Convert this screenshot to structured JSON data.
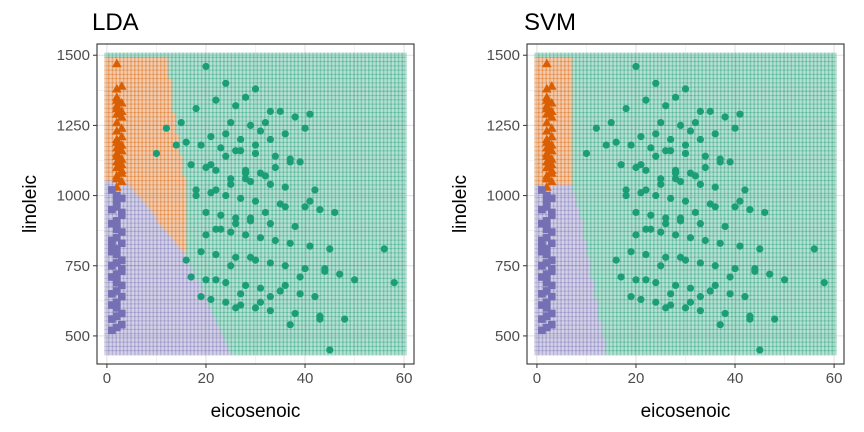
{
  "chart_data": [
    {
      "type": "scatter",
      "title": "LDA",
      "xlabel": "eicosenoic",
      "ylabel": "linoleic",
      "xlim": [
        -2,
        62
      ],
      "ylim": [
        400,
        1540
      ],
      "x_ticks": [
        0,
        20,
        40,
        60
      ],
      "y_ticks": [
        500,
        750,
        1000,
        1250,
        1500
      ],
      "grid": true,
      "legend": "none",
      "background_regions": {
        "grid_x_range": [
          0,
          60
        ],
        "grid_y_range": [
          440,
          1500
        ],
        "regions": [
          {
            "class": "orange",
            "color": "#D95F02",
            "polygon": [
              [
                0,
                1500
              ],
              [
                12.5,
                1500
              ],
              [
                13,
                1340
              ],
              [
                16,
                1050
              ],
              [
                16,
                790
              ],
              [
                3.5,
                1060
              ],
              [
                0,
                1060
              ]
            ]
          },
          {
            "class": "purple",
            "color": "#7570B3",
            "polygon": [
              [
                0,
                1060
              ],
              [
                3.5,
                1060
              ],
              [
                16,
                790
              ],
              [
                25,
                440
              ],
              [
                0,
                440
              ]
            ]
          },
          {
            "class": "green",
            "color": "#1B9E77",
            "polygon": [
              [
                12.5,
                1500
              ],
              [
                60,
                1500
              ],
              [
                60,
                440
              ],
              [
                25,
                440
              ],
              [
                16,
                790
              ],
              [
                16,
                1050
              ],
              [
                13,
                1340
              ]
            ]
          }
        ]
      },
      "series": [
        {
          "color": "#D95F02",
          "marker": "triangle",
          "x": [
            2,
            2,
            3,
            2,
            2,
            3,
            2,
            3,
            2,
            2,
            3,
            2,
            3,
            2,
            2,
            3,
            2,
            3,
            2,
            3,
            2,
            2,
            3,
            2,
            3,
            2,
            2,
            3,
            2,
            3,
            3,
            2
          ],
          "y": [
            1470,
            1380,
            1390,
            1350,
            1320,
            1330,
            1290,
            1300,
            1260,
            1230,
            1240,
            1190,
            1180,
            1150,
            1140,
            1130,
            1120,
            1110,
            1100,
            1080,
            1070,
            1060,
            1050,
            1200,
            1280,
            1340,
            1030,
            1090,
            1170,
            1210,
            1160,
            1310
          ]
        },
        {
          "color": "#7570B3",
          "marker": "square",
          "x": [
            1,
            2,
            3,
            2,
            1,
            3,
            2,
            1,
            2,
            3,
            2,
            1,
            3,
            2,
            1,
            2,
            3,
            2,
            1,
            3,
            2,
            1,
            2,
            3,
            2,
            1,
            3,
            2,
            1,
            2,
            3,
            2,
            1,
            3,
            2,
            1,
            2,
            3,
            2,
            1,
            3,
            2
          ],
          "y": [
            1020,
            1000,
            990,
            960,
            950,
            930,
            910,
            900,
            880,
            870,
            850,
            840,
            830,
            810,
            800,
            790,
            770,
            760,
            750,
            730,
            720,
            710,
            690,
            680,
            660,
            650,
            640,
            620,
            610,
            600,
            580,
            570,
            560,
            540,
            530,
            520,
            980,
            940,
            890,
            820,
            740,
            700
          ]
        },
        {
          "color": "#1B9E77",
          "marker": "circle",
          "x": [
            20,
            24,
            30,
            28,
            35,
            41,
            22,
            26,
            18,
            33,
            38,
            25,
            29,
            31,
            24,
            21,
            27,
            16,
            19,
            23,
            26,
            30,
            34,
            37,
            39,
            17,
            20,
            22,
            28,
            32,
            25,
            29,
            33,
            36,
            18,
            21,
            24,
            27,
            30,
            35,
            40,
            43,
            20,
            23,
            26,
            29,
            33,
            38,
            22,
            25,
            28,
            31,
            34,
            37,
            41,
            45,
            19,
            22,
            26,
            30,
            33,
            36,
            40,
            44,
            47,
            17,
            20,
            24,
            28,
            31,
            35,
            39,
            42,
            21,
            24,
            27,
            30,
            33,
            38,
            43,
            48,
            20,
            23,
            26,
            29,
            32,
            36,
            41,
            18,
            22,
            25,
            28,
            31,
            34,
            37,
            24,
            27,
            30,
            33,
            36,
            40,
            56,
            58,
            50,
            45,
            43,
            31,
            37,
            27,
            22,
            25,
            29,
            19,
            26,
            33,
            36,
            39,
            44,
            15,
            12,
            10,
            14,
            21,
            28,
            32,
            16,
            42,
            46
          ],
          "y": [
            1460,
            1400,
            1380,
            1350,
            1300,
            1290,
            1340,
            1320,
            1310,
            1300,
            1280,
            1260,
            1250,
            1230,
            1220,
            1210,
            1200,
            1190,
            1180,
            1170,
            1160,
            1150,
            1140,
            1130,
            1120,
            1110,
            1100,
            1090,
            1080,
            1070,
            1060,
            1050,
            1040,
            1030,
            1020,
            1010,
            1000,
            990,
            980,
            970,
            960,
            950,
            940,
            930,
            920,
            910,
            900,
            890,
            880,
            870,
            860,
            850,
            840,
            830,
            820,
            810,
            800,
            790,
            780,
            770,
            760,
            750,
            740,
            730,
            720,
            710,
            700,
            690,
            680,
            670,
            660,
            650,
            640,
            630,
            620,
            610,
            600,
            590,
            580,
            570,
            560,
            860,
            880,
            900,
            920,
            940,
            960,
            980,
            1000,
            1020,
            1040,
            1060,
            1080,
            1100,
            1120,
            1140,
            1160,
            1180,
            1200,
            1220,
            1240,
            810,
            690,
            700,
            450,
            560,
            620,
            540,
            650,
            700,
            750,
            780,
            640,
            600,
            640,
            680,
            710,
            740,
            1260,
            1240,
            1150,
            1180,
            1110,
            1090,
            1260,
            770,
            1020,
            940
          ]
        }
      ]
    },
    {
      "type": "scatter",
      "title": "SVM",
      "xlabel": "eicosenoic",
      "ylabel": "linoleic",
      "xlim": [
        -2,
        62
      ],
      "ylim": [
        400,
        1540
      ],
      "x_ticks": [
        0,
        20,
        40,
        60
      ],
      "y_ticks": [
        500,
        750,
        1000,
        1250,
        1500
      ],
      "grid": true,
      "legend": "none",
      "background_regions": {
        "grid_x_range": [
          0,
          60
        ],
        "grid_y_range": [
          440,
          1500
        ],
        "regions": [
          {
            "class": "orange",
            "color": "#D95F02",
            "polygon": [
              [
                0,
                1500
              ],
              [
                7,
                1500
              ],
              [
                7,
                1040
              ],
              [
                0,
                1040
              ]
            ]
          },
          {
            "class": "purple",
            "color": "#7570B3",
            "polygon": [
              [
                0,
                1040
              ],
              [
                7,
                1040
              ],
              [
                9,
                920
              ],
              [
                14,
                440
              ],
              [
                0,
                440
              ]
            ]
          },
          {
            "class": "green",
            "color": "#1B9E77",
            "polygon": [
              [
                7,
                1500
              ],
              [
                60,
                1500
              ],
              [
                60,
                440
              ],
              [
                14,
                440
              ],
              [
                9,
                920
              ],
              [
                7,
                1040
              ]
            ]
          }
        ]
      },
      "series": [
        {
          "color": "#D95F02",
          "marker": "triangle",
          "x": [
            2,
            2,
            3,
            2,
            2,
            3,
            2,
            3,
            2,
            2,
            3,
            2,
            3,
            2,
            2,
            3,
            2,
            3,
            2,
            3,
            2,
            2,
            3,
            2,
            3,
            2,
            2,
            3,
            2,
            3,
            3,
            2
          ],
          "y": [
            1470,
            1380,
            1390,
            1350,
            1320,
            1330,
            1290,
            1300,
            1260,
            1230,
            1240,
            1190,
            1180,
            1150,
            1140,
            1130,
            1120,
            1110,
            1100,
            1080,
            1070,
            1060,
            1050,
            1200,
            1280,
            1340,
            1030,
            1090,
            1170,
            1210,
            1160,
            1310
          ]
        },
        {
          "color": "#7570B3",
          "marker": "square",
          "x": [
            1,
            2,
            3,
            2,
            1,
            3,
            2,
            1,
            2,
            3,
            2,
            1,
            3,
            2,
            1,
            2,
            3,
            2,
            1,
            3,
            2,
            1,
            2,
            3,
            2,
            1,
            3,
            2,
            1,
            2,
            3,
            2,
            1,
            3,
            2,
            1,
            2,
            3,
            2,
            1,
            3,
            2
          ],
          "y": [
            1020,
            1000,
            990,
            960,
            950,
            930,
            910,
            900,
            880,
            870,
            850,
            840,
            830,
            810,
            800,
            790,
            770,
            760,
            750,
            730,
            720,
            710,
            690,
            680,
            660,
            650,
            640,
            620,
            610,
            600,
            580,
            570,
            560,
            540,
            530,
            520,
            980,
            940,
            890,
            820,
            740,
            700
          ]
        },
        {
          "color": "#1B9E77",
          "marker": "circle",
          "x": [
            20,
            24,
            30,
            28,
            35,
            41,
            22,
            26,
            18,
            33,
            38,
            25,
            29,
            31,
            24,
            21,
            27,
            16,
            19,
            23,
            26,
            30,
            34,
            37,
            39,
            17,
            20,
            22,
            28,
            32,
            25,
            29,
            33,
            36,
            18,
            21,
            24,
            27,
            30,
            35,
            40,
            43,
            20,
            23,
            26,
            29,
            33,
            38,
            22,
            25,
            28,
            31,
            34,
            37,
            41,
            45,
            19,
            22,
            26,
            30,
            33,
            36,
            40,
            44,
            47,
            17,
            20,
            24,
            28,
            31,
            35,
            39,
            42,
            21,
            24,
            27,
            30,
            33,
            38,
            43,
            48,
            20,
            23,
            26,
            29,
            32,
            36,
            41,
            18,
            22,
            25,
            28,
            31,
            34,
            37,
            24,
            27,
            30,
            33,
            36,
            40,
            56,
            58,
            50,
            45,
            43,
            31,
            37,
            27,
            22,
            25,
            29,
            19,
            26,
            33,
            36,
            39,
            44,
            15,
            12,
            10,
            14,
            21,
            28,
            32,
            16,
            42,
            46
          ],
          "y": [
            1460,
            1400,
            1380,
            1350,
            1300,
            1290,
            1340,
            1320,
            1310,
            1300,
            1280,
            1260,
            1250,
            1230,
            1220,
            1210,
            1200,
            1190,
            1180,
            1170,
            1160,
            1150,
            1140,
            1130,
            1120,
            1110,
            1100,
            1090,
            1080,
            1070,
            1060,
            1050,
            1040,
            1030,
            1020,
            1010,
            1000,
            990,
            980,
            970,
            960,
            950,
            940,
            930,
            920,
            910,
            900,
            890,
            880,
            870,
            860,
            850,
            840,
            830,
            820,
            810,
            800,
            790,
            780,
            770,
            760,
            750,
            740,
            730,
            720,
            710,
            700,
            690,
            680,
            670,
            660,
            650,
            640,
            630,
            620,
            610,
            600,
            590,
            580,
            570,
            560,
            860,
            880,
            900,
            920,
            940,
            960,
            980,
            1000,
            1020,
            1040,
            1060,
            1080,
            1100,
            1120,
            1140,
            1160,
            1180,
            1200,
            1220,
            1240,
            810,
            690,
            700,
            450,
            560,
            620,
            540,
            650,
            700,
            750,
            780,
            640,
            600,
            640,
            680,
            710,
            740,
            1260,
            1240,
            1150,
            1180,
            1110,
            1090,
            1260,
            770,
            1020,
            940
          ]
        }
      ]
    }
  ]
}
